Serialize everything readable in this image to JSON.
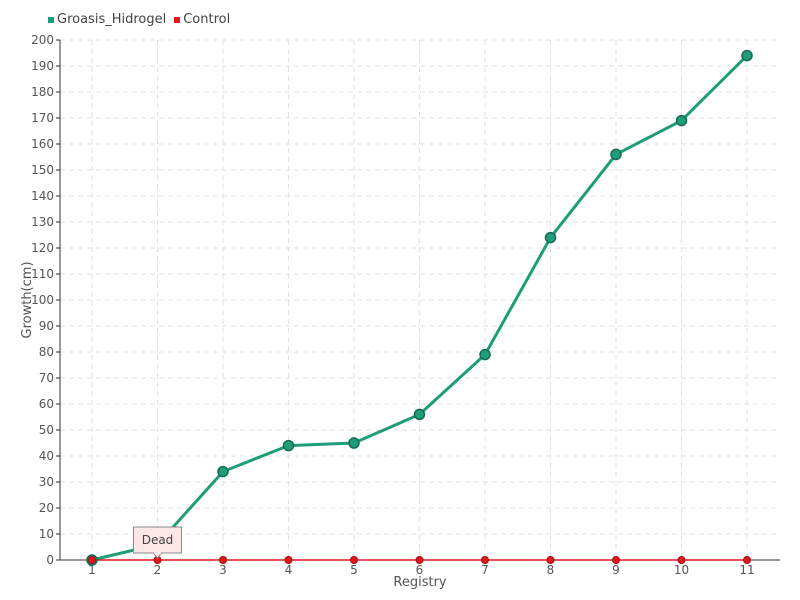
{
  "chart_data": {
    "type": "line",
    "xlabel": "Registry",
    "ylabel": "Growth(cm)",
    "categories": [
      "1",
      "2",
      "3",
      "4",
      "5",
      "6",
      "7",
      "8",
      "9",
      "10",
      "11"
    ],
    "ylim": [
      0,
      200
    ],
    "ytick_step": 10,
    "grid": true,
    "legend_position": "top-left",
    "series": [
      {
        "name": "Groasis_Hidrogel",
        "color": "#1e9e78",
        "values": [
          0,
          6,
          34,
          44,
          45,
          56,
          79,
          124,
          156,
          169,
          194
        ]
      },
      {
        "name": "Control",
        "color": "#e0181c",
        "values": [
          0,
          0,
          0,
          0,
          0,
          0,
          0,
          0,
          0,
          0,
          0
        ]
      }
    ],
    "annotations": [
      {
        "text": "Dead",
        "series": "Control",
        "x": "2"
      }
    ]
  }
}
